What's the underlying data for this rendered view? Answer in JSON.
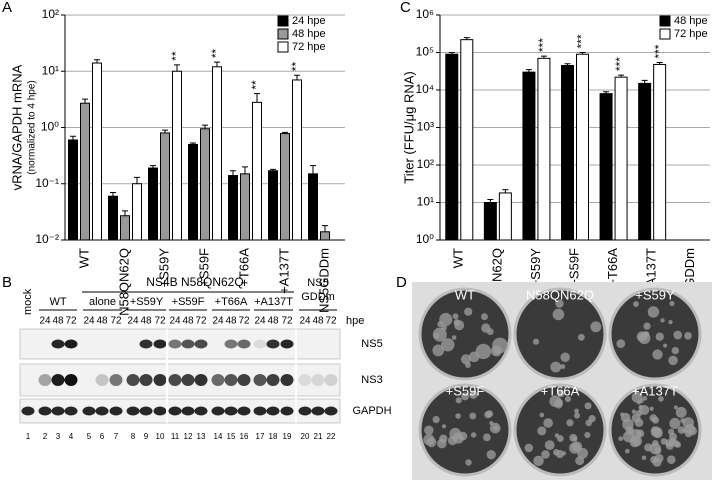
{
  "chart_data": [
    {
      "type": "bar",
      "panel": "A",
      "ylabel": "vRNA/GAPDH mRNA",
      "ylabel_sub": "(normalized to 4 hpe)",
      "categories": [
        "WT",
        "N58QN62Q",
        "+S59Y",
        "+S59F",
        "+T66A",
        "+A137T",
        "NS5GDDm"
      ],
      "series": [
        {
          "name": "24 hpe",
          "color": "#000000",
          "values": [
            0.6,
            0.06,
            0.19,
            0.5,
            0.14,
            0.17,
            0.15
          ],
          "errors": [
            0.1,
            0.01,
            0.02,
            0.03,
            0.03,
            0.01,
            0.06
          ]
        },
        {
          "name": "48 hpe",
          "color": "#999999",
          "values": [
            2.7,
            0.027,
            0.8,
            0.95,
            0.15,
            0.78,
            0.014
          ],
          "errors": [
            0.5,
            0.006,
            0.1,
            0.15,
            0.05,
            0.04,
            0.004
          ]
        },
        {
          "name": "72 hpe",
          "color": "#ffffff",
          "values": [
            14,
            0.1,
            10,
            12,
            2.8,
            7,
            null
          ],
          "errors": [
            2,
            0.03,
            3,
            2.5,
            1.2,
            1.5,
            null
          ]
        }
      ],
      "annotations": [
        null,
        null,
        "**",
        "**",
        "**",
        "**",
        null
      ],
      "log_scale": true,
      "grid": true,
      "legend": "top-right",
      "ylim": [
        0.01,
        100
      ],
      "yticks": [
        {
          "value": 0.01,
          "label": "10⁻²"
        },
        {
          "value": 0.1,
          "label": "10⁻¹"
        },
        {
          "value": 1,
          "label": "10⁰"
        },
        {
          "value": 10,
          "label": "10¹"
        },
        {
          "value": 100,
          "label": "10²"
        }
      ]
    },
    {
      "type": "bar",
      "panel": "C",
      "ylabel": "Titer (FFU/μg RNA)",
      "categories": [
        "WT",
        "N58QN62Q",
        "+S59Y",
        "+S59F",
        "+T66A",
        "+A137T",
        "NS5GDDm"
      ],
      "series": [
        {
          "name": "48 hpe",
          "color": "#000000",
          "values": [
            90000,
            10,
            30000,
            45000,
            8000,
            15000,
            null
          ],
          "errors": [
            10000,
            2,
            5000,
            5000,
            1000,
            3000,
            null
          ]
        },
        {
          "name": "72 hpe",
          "color": "#ffffff",
          "values": [
            220000,
            18,
            70000,
            90000,
            22000,
            48000,
            null
          ],
          "errors": [
            30000,
            4,
            10000,
            10000,
            3000,
            6000,
            null
          ]
        }
      ],
      "annotations": [
        null,
        null,
        "***",
        "***",
        "***",
        "***",
        null
      ],
      "log_scale": true,
      "grid": true,
      "legend": "top-right",
      "ylim": [
        1,
        1000000
      ],
      "yticks": [
        {
          "value": 1,
          "label": "10⁰"
        },
        {
          "value": 10,
          "label": "10¹"
        },
        {
          "value": 100,
          "label": "10²"
        },
        {
          "value": 1000,
          "label": "10³"
        },
        {
          "value": 10000,
          "label": "10⁴"
        },
        {
          "value": 100000,
          "label": "10⁵"
        },
        {
          "value": 1000000,
          "label": "10⁶"
        }
      ]
    }
  ],
  "blot": {
    "panel": "B",
    "header": "NS4B N58QN62Q",
    "mock": "mock",
    "groups": [
      "WT",
      "alone",
      "+S59Y",
      "+S59F",
      "+T66A",
      "+A137T"
    ],
    "control": [
      "NS5",
      "GDDm"
    ],
    "time_unit": "hpe",
    "time_labels": [
      24,
      48,
      72,
      24,
      48,
      72,
      24,
      48,
      72,
      24,
      48,
      72,
      24,
      48,
      72,
      24,
      48,
      72,
      24,
      48,
      72
    ],
    "rows": [
      "NS5",
      "NS3",
      "GAPDH"
    ],
    "lane_numbers": [
      1,
      2,
      3,
      4,
      5,
      6,
      7,
      8,
      9,
      10,
      11,
      12,
      13,
      14,
      15,
      16,
      17,
      18,
      19,
      20,
      21,
      22
    ]
  },
  "plaques": {
    "panel": "D",
    "labels": [
      "WT",
      "N58QN62Q",
      "+S59Y",
      "+S59F",
      "+T66A",
      "+A137T"
    ]
  }
}
